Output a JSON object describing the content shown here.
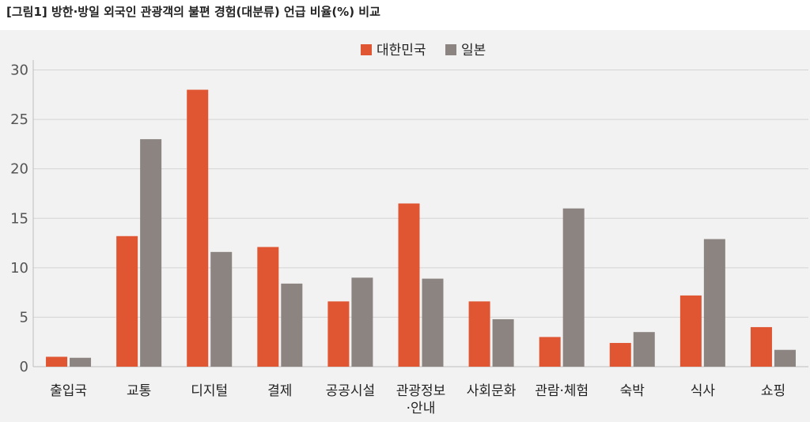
{
  "title": "[그림1] 방한·방일 외국인 관광객의 불편 경험(대분류) 언급 비율(%) 비교",
  "chart_data": {
    "type": "bar",
    "title": "[그림1] 방한·방일 외국인 관광객의 불편 경험(대분류) 언급 비율(%) 비교",
    "categories": [
      "출입국",
      "교통",
      "디지털",
      "결제",
      "공공시설",
      [
        "관광정보",
        "·안내"
      ],
      "사회문화",
      "관람·체험",
      "숙박",
      "식사",
      "쇼핑"
    ],
    "series": [
      {
        "name": "대한민국",
        "color": "#e05532",
        "values": [
          1.0,
          13.2,
          28.0,
          12.1,
          6.6,
          16.5,
          6.6,
          3.0,
          2.4,
          7.2,
          4.0
        ]
      },
      {
        "name": "일본",
        "color": "#8b8480",
        "values": [
          0.9,
          23.0,
          11.6,
          8.4,
          9.0,
          8.9,
          4.8,
          16.0,
          3.5,
          12.9,
          1.7
        ]
      }
    ],
    "yticks": [
      0,
      5,
      10,
      15,
      20,
      25,
      30
    ],
    "ylim": [
      0,
      31
    ],
    "grid": true,
    "legend": "top-center"
  }
}
